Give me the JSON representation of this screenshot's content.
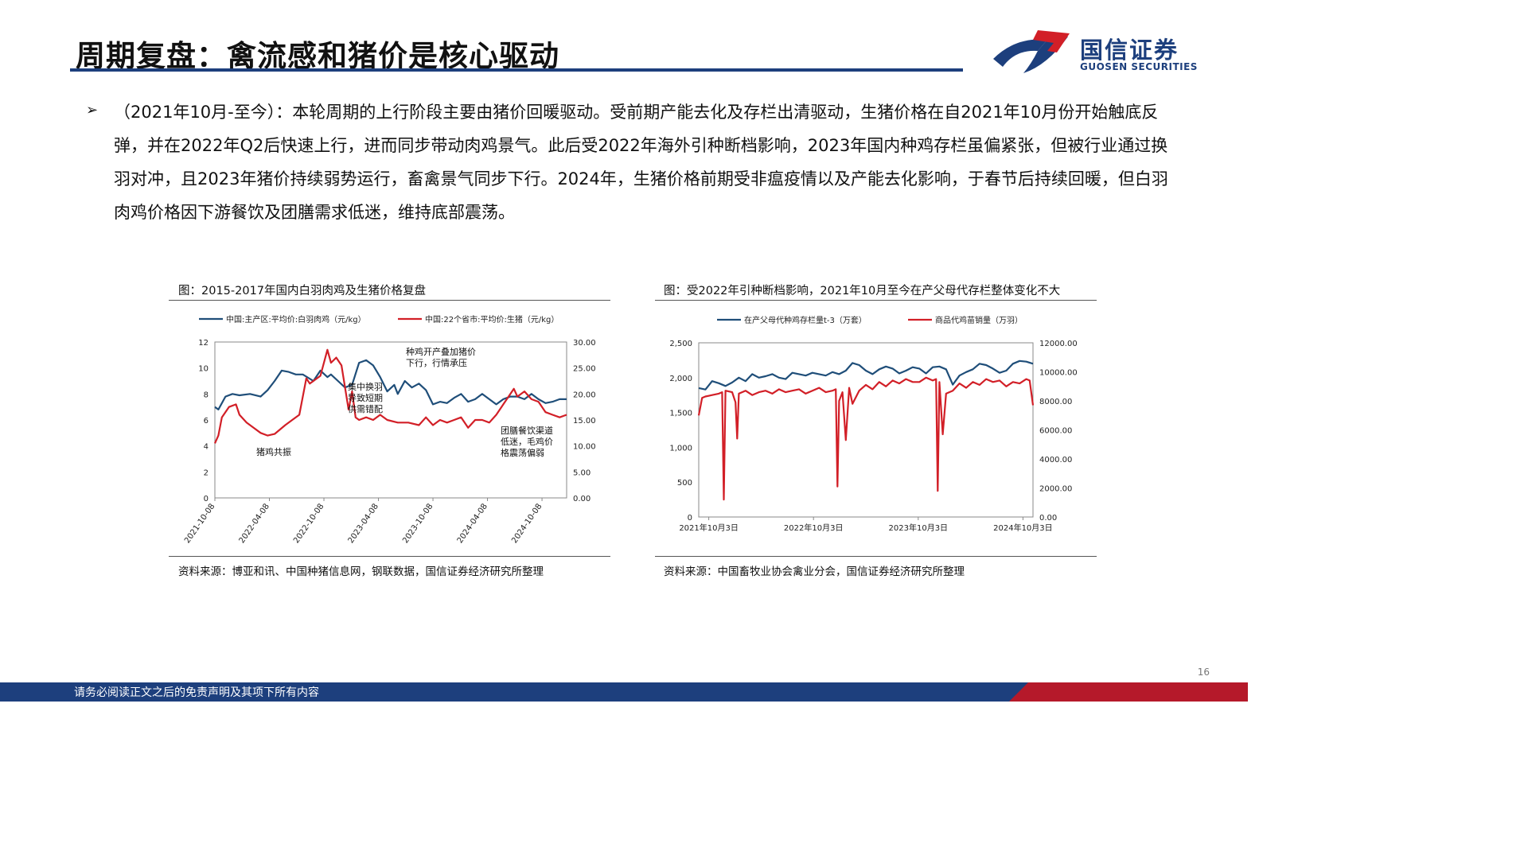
{
  "header": {
    "title": "周期复盘：禽流感和猪价是核心驱动",
    "logo_cn": "国信证券",
    "logo_en": "GUOSEN SECURITIES"
  },
  "bullet": {
    "mark": "➢",
    "text": "（2021年10月-至今）：本轮周期的上行阶段主要由猪价回暖驱动。受前期产能去化及存栏出清驱动，生猪价格在自2021年10月份开始触底反弹，并在2022年Q2后快速上行，进而同步带动肉鸡景气。此后受2022年海外引种断档影响，2023年国内种鸡存栏虽偏紧张，但被行业通过换羽对冲，且2023年猪价持续弱势运行，畜禽景气同步下行。2024年，生猪价格前期受非瘟疫情以及产能去化影响，于春节后持续回暖，但白羽肉鸡价格因下游餐饮及团膳需求低迷，维持底部震荡。"
  },
  "chart_left": {
    "caption": "图：2015-2017年国内白羽肉鸡及生猪价格复盘",
    "source": "资料来源：博亚和讯、中国种猪信息网，钢联数据，国信证券经济研究所整理"
  },
  "chart_right": {
    "caption": "图：受2022年引种断档影响，2021年10月至今在产父母代存栏整体变化不大",
    "source": "资料来源：中国畜牧业协会禽业分会，国信证券经济研究所整理"
  },
  "footer": {
    "disclaimer": "请务必阅读正文之后的免责声明及其项下所有内容",
    "page": "16"
  },
  "colors": {
    "navy": "#1d3f7d",
    "red": "#b5192a",
    "series_blue": "#1f4e79",
    "series_red": "#d21f27"
  },
  "chart_data": [
    {
      "type": "line",
      "title": "",
      "x_ticks": [
        "2021-10-08",
        "2022-04-08",
        "2022-10-08",
        "2023-04-08",
        "2023-10-08",
        "2024-04-08",
        "2024-10-08"
      ],
      "y_left": {
        "range": [
          0,
          12
        ],
        "ticks": [
          "0",
          "2",
          "4",
          "6",
          "8",
          "10",
          "12"
        ]
      },
      "y_right": {
        "range": [
          0,
          30
        ],
        "ticks": [
          "0.00",
          "5.00",
          "10.00",
          "15.00",
          "20.00",
          "25.00",
          "30.00"
        ]
      },
      "series": [
        {
          "name": "中国:主产区:平均价:白羽肉鸡（元/kg）",
          "axis": "left",
          "color": "#1f4e79",
          "x": [
            0,
            0.01,
            0.03,
            0.05,
            0.07,
            0.1,
            0.13,
            0.15,
            0.17,
            0.19,
            0.21,
            0.23,
            0.25,
            0.28,
            0.3,
            0.32,
            0.33,
            0.35,
            0.37,
            0.39,
            0.41,
            0.43,
            0.45,
            0.47,
            0.49,
            0.51,
            0.52,
            0.54,
            0.56,
            0.58,
            0.6,
            0.62,
            0.64,
            0.66,
            0.68,
            0.7,
            0.72,
            0.74,
            0.76,
            0.78,
            0.8,
            0.82,
            0.84,
            0.86,
            0.88,
            0.9,
            0.92,
            0.94,
            0.96,
            0.98,
            1.0
          ],
          "y": [
            7.0,
            6.8,
            7.8,
            8.0,
            7.9,
            8.0,
            7.8,
            8.3,
            9.0,
            9.8,
            9.7,
            9.5,
            9.5,
            9.0,
            9.8,
            9.3,
            9.5,
            9.0,
            8.5,
            8.7,
            10.4,
            10.6,
            10.2,
            9.3,
            8.2,
            8.7,
            8.0,
            9.0,
            8.5,
            8.8,
            8.3,
            7.2,
            7.4,
            7.3,
            7.7,
            8.0,
            7.4,
            7.6,
            8.0,
            7.6,
            7.2,
            7.6,
            7.8,
            7.8,
            7.6,
            8.0,
            7.6,
            7.3,
            7.4,
            7.6,
            7.6
          ]
        },
        {
          "name": "中国:22个省市:平均价:生猪（元/kg）",
          "axis": "right",
          "color": "#d21f27",
          "x": [
            0,
            0.01,
            0.02,
            0.04,
            0.06,
            0.07,
            0.09,
            0.11,
            0.13,
            0.15,
            0.17,
            0.2,
            0.22,
            0.24,
            0.26,
            0.27,
            0.28,
            0.3,
            0.32,
            0.33,
            0.345,
            0.36,
            0.38,
            0.39,
            0.4,
            0.41,
            0.43,
            0.45,
            0.47,
            0.49,
            0.52,
            0.55,
            0.58,
            0.6,
            0.62,
            0.64,
            0.66,
            0.68,
            0.7,
            0.72,
            0.74,
            0.76,
            0.78,
            0.8,
            0.82,
            0.84,
            0.85,
            0.86,
            0.88,
            0.9,
            0.92,
            0.94,
            0.96,
            0.98,
            1.0
          ],
          "y": [
            10.5,
            12.0,
            15.5,
            17.5,
            18.0,
            16.0,
            14.5,
            13.5,
            12.5,
            12.0,
            12.3,
            14.0,
            15.0,
            16.0,
            23.0,
            22.0,
            22.5,
            23.5,
            28.5,
            26.0,
            27.0,
            25.5,
            17.0,
            20.5,
            15.5,
            15.0,
            15.5,
            15.0,
            16.0,
            15.0,
            14.5,
            14.5,
            14.0,
            15.5,
            14.0,
            15.0,
            14.5,
            15.0,
            15.5,
            13.5,
            15.0,
            15.0,
            14.5,
            16.0,
            18.0,
            20.0,
            21.0,
            19.5,
            20.5,
            19.0,
            18.5,
            16.5,
            16.0,
            15.5,
            16.0
          ]
        }
      ],
      "annotations": [
        "种鸡开产叠加猪价\n下行，行情承压",
        "集中换羽\n导致短期\n供需错配",
        "猪鸡共振",
        "团膳餐饮渠道\n低迷，毛鸡价\n格震荡偏弱"
      ]
    },
    {
      "type": "line",
      "title": "",
      "x_ticks": [
        "2021年10月3日",
        "2022年10月3日",
        "2023年10月3日",
        "2024年10月3日"
      ],
      "y_left": {
        "range": [
          0,
          2500
        ],
        "ticks": [
          "0",
          "500",
          "1,000",
          "1,500",
          "2,000",
          "2,500"
        ]
      },
      "y_right": {
        "range": [
          0,
          12000
        ],
        "ticks": [
          "0.00",
          "2000.00",
          "4000.00",
          "6000.00",
          "8000.00",
          "10000.00",
          "12000.00"
        ]
      },
      "series": [
        {
          "name": "在产父母代种鸡存栏量t-3（万套）",
          "axis": "left",
          "color": "#1f4e79",
          "x": [
            0,
            0.02,
            0.04,
            0.06,
            0.08,
            0.1,
            0.12,
            0.14,
            0.16,
            0.18,
            0.2,
            0.22,
            0.24,
            0.26,
            0.28,
            0.3,
            0.32,
            0.34,
            0.36,
            0.38,
            0.4,
            0.42,
            0.44,
            0.46,
            0.48,
            0.5,
            0.52,
            0.54,
            0.56,
            0.58,
            0.6,
            0.62,
            0.64,
            0.66,
            0.68,
            0.7,
            0.72,
            0.74,
            0.76,
            0.78,
            0.8,
            0.82,
            0.84,
            0.86,
            0.88,
            0.9,
            0.92,
            0.94,
            0.96,
            0.98,
            1.0
          ],
          "y": [
            1850,
            1830,
            1950,
            1920,
            1880,
            1930,
            2000,
            1950,
            2050,
            2000,
            2020,
            2050,
            2000,
            1980,
            2070,
            2050,
            2030,
            2070,
            2050,
            2030,
            2080,
            2050,
            2100,
            2210,
            2180,
            2100,
            2050,
            2120,
            2160,
            2130,
            2060,
            2100,
            2150,
            2130,
            2060,
            2150,
            2160,
            2120,
            1900,
            2030,
            2080,
            2120,
            2200,
            2180,
            2130,
            2070,
            2100,
            2200,
            2240,
            2230,
            2200
          ]
        },
        {
          "name": "商品代鸡苗销量（万羽）",
          "axis": "right",
          "color": "#d21f27",
          "x": [
            0,
            0.01,
            0.02,
            0.04,
            0.06,
            0.07,
            0.075,
            0.08,
            0.1,
            0.11,
            0.115,
            0.12,
            0.14,
            0.16,
            0.18,
            0.2,
            0.22,
            0.24,
            0.26,
            0.28,
            0.3,
            0.32,
            0.34,
            0.36,
            0.38,
            0.4,
            0.41,
            0.415,
            0.42,
            0.43,
            0.44,
            0.45,
            0.46,
            0.48,
            0.5,
            0.52,
            0.54,
            0.56,
            0.58,
            0.6,
            0.62,
            0.64,
            0.66,
            0.68,
            0.7,
            0.71,
            0.715,
            0.72,
            0.73,
            0.74,
            0.76,
            0.78,
            0.8,
            0.82,
            0.84,
            0.86,
            0.88,
            0.9,
            0.92,
            0.94,
            0.96,
            0.98,
            0.99,
            1.0
          ],
          "y": [
            7000,
            8200,
            8300,
            8400,
            8500,
            8600,
            1200,
            8700,
            8600,
            7900,
            5400,
            8500,
            8700,
            8400,
            8600,
            8700,
            8500,
            8800,
            8600,
            8700,
            8800,
            8500,
            8700,
            8900,
            8600,
            8700,
            8800,
            2100,
            8000,
            8600,
            5300,
            8900,
            7800,
            8700,
            9100,
            8800,
            9300,
            9000,
            9400,
            9200,
            9500,
            9300,
            9300,
            9600,
            9400,
            9500,
            1800,
            9300,
            5700,
            8500,
            8700,
            9200,
            8900,
            9300,
            9100,
            9500,
            9300,
            9400,
            9000,
            9300,
            9200,
            9500,
            9400,
            7700
          ]
        }
      ]
    }
  ]
}
